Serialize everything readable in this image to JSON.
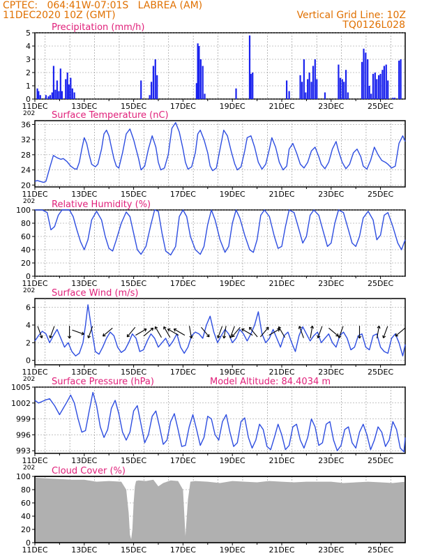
{
  "header": {
    "line1": "CPTEC:   064:41W-07:01S   LABREA (AM)",
    "line2": "11DEC2020 10Z (GMT)",
    "grid_line": "Vertical Grid Line: 10Z",
    "run_id": "TQ0126L028"
  },
  "colors": {
    "series": "#2d4de0",
    "bars": "#1a22ee",
    "cloud": "#b0b0b0",
    "title": "#e0207a",
    "header": "#e07000",
    "grid": "#888888"
  },
  "x_axis": {
    "start": "2020-12-11T00:00Z",
    "end": "2020-12-26T00:00Z",
    "tick_labels": [
      "11DEC",
      "13DEC",
      "15DEC",
      "17DEC",
      "19DEC",
      "21DEC",
      "23DEC",
      "25DEC"
    ],
    "tick_days": [
      0,
      2,
      4,
      6,
      8,
      10,
      12,
      14
    ],
    "partial_label": "202"
  },
  "chart_data": [
    {
      "type": "bar",
      "title": "Precipitation (mm/h)",
      "ylim": [
        0,
        5
      ],
      "yticks": [
        "0",
        "1",
        "2",
        "3",
        "4",
        "5"
      ],
      "x_unit": "days since 11DEC2020 00Z",
      "x": [
        0.1,
        0.15,
        0.22,
        0.45,
        0.55,
        0.62,
        0.7,
        0.76,
        0.83,
        0.9,
        0.97,
        1.04,
        1.1,
        1.25,
        1.32,
        1.38,
        1.45,
        1.52,
        1.6,
        4.3,
        4.65,
        4.72,
        4.8,
        4.88,
        4.95,
        6.55,
        6.6,
        6.65,
        6.72,
        6.8,
        6.88,
        8.15,
        8.7,
        8.75,
        8.82,
        10.2,
        10.3,
        10.75,
        10.82,
        10.9,
        10.97,
        11.05,
        11.12,
        11.2,
        11.27,
        11.35,
        11.42,
        11.75,
        12.3,
        12.37,
        12.45,
        12.52,
        12.6,
        12.68,
        13.25,
        13.32,
        13.4,
        13.48,
        13.55,
        13.62,
        13.7,
        13.78,
        13.85,
        13.93,
        14.0,
        14.08,
        14.15,
        14.23,
        14.3,
        14.5,
        14.58,
        14.75,
        14.82
      ],
      "values": [
        0.8,
        0.6,
        0.3,
        0.3,
        0.2,
        0.3,
        0.5,
        2.5,
        0.7,
        1.4,
        0.6,
        2.3,
        0.6,
        1.5,
        2.0,
        1.1,
        1.6,
        0.8,
        0.5,
        1.4,
        0.3,
        1.3,
        2.5,
        3.0,
        1.8,
        1.2,
        4.2,
        4.0,
        3.0,
        2.5,
        0.4,
        0.8,
        4.8,
        1.9,
        2.0,
        1.4,
        0.6,
        1.8,
        1.3,
        3.0,
        0.5,
        1.5,
        2.0,
        1.3,
        2.5,
        3.0,
        1.5,
        0.5,
        2.6,
        1.6,
        1.5,
        1.3,
        2.2,
        0.5,
        2.8,
        3.8,
        3.5,
        3.0,
        1.0,
        0.4,
        1.9,
        2.0,
        1.5,
        1.8,
        1.9,
        2.2,
        2.5,
        2.6,
        1.4,
        0.1,
        0.1,
        2.9,
        3.0
      ]
    },
    {
      "type": "line",
      "title": "Surface Temperature (nC)",
      "ylim": [
        19.5,
        37
      ],
      "yticks": [
        "20",
        "24",
        "28",
        "32",
        "36"
      ],
      "ytick_values": [
        20,
        24,
        28,
        32,
        36
      ],
      "x_unit": "days since 11DEC2020 00Z",
      "x": [
        0.0,
        0.1,
        0.2,
        0.3,
        0.35,
        0.45,
        0.6,
        0.75,
        0.9,
        1.05,
        1.15,
        1.3,
        1.45,
        1.6,
        1.7,
        1.8,
        1.9,
        2.0,
        2.1,
        2.2,
        2.3,
        2.45,
        2.55,
        2.7,
        2.8,
        2.9,
        3.0,
        3.1,
        3.2,
        3.3,
        3.4,
        3.55,
        3.7,
        3.85,
        4.0,
        4.1,
        4.2,
        4.3,
        4.45,
        4.6,
        4.75,
        4.9,
        5.0,
        5.1,
        5.25,
        5.4,
        5.55,
        5.7,
        5.85,
        6.0,
        6.1,
        6.2,
        6.35,
        6.5,
        6.6,
        6.7,
        6.85,
        7.0,
        7.1,
        7.2,
        7.35,
        7.5,
        7.65,
        7.8,
        7.95,
        8.1,
        8.2,
        8.35,
        8.5,
        8.6,
        8.75,
        8.9,
        9.05,
        9.2,
        9.35,
        9.5,
        9.6,
        9.75,
        9.9,
        10.05,
        10.2,
        10.3,
        10.45,
        10.6,
        10.75,
        10.9,
        11.05,
        11.2,
        11.35,
        11.5,
        11.6,
        11.75,
        11.9,
        12.05,
        12.2,
        12.3,
        12.45,
        12.6,
        12.75,
        12.9,
        13.05,
        13.2,
        13.3,
        13.45,
        13.6,
        13.75,
        13.9,
        14.05,
        14.2,
        14.3,
        14.45,
        14.6,
        14.75,
        14.9,
        15.0
      ],
      "values": [
        21.0,
        21.2,
        21.0,
        20.8,
        20.7,
        21.0,
        24.5,
        27.8,
        27.2,
        26.8,
        27.0,
        26.2,
        25.0,
        24.3,
        24.2,
        26.0,
        29.5,
        32.5,
        31.0,
        28.0,
        25.5,
        24.8,
        25.5,
        29.5,
        33.5,
        34.5,
        33.0,
        30.0,
        27.0,
        25.0,
        24.5,
        28.5,
        33.5,
        34.8,
        32.0,
        29.5,
        27.0,
        24.0,
        25.0,
        29.5,
        33.0,
        30.0,
        26.0,
        24.0,
        24.5,
        28.0,
        35.0,
        36.5,
        34.0,
        29.5,
        26.0,
        24.2,
        24.8,
        28.5,
        33.5,
        34.5,
        32.0,
        28.5,
        25.0,
        23.8,
        24.5,
        29.5,
        34.5,
        33.0,
        29.0,
        25.5,
        24.0,
        24.8,
        29.0,
        32.5,
        33.0,
        30.0,
        26.0,
        24.2,
        25.5,
        29.5,
        32.5,
        30.0,
        26.0,
        24.0,
        25.0,
        29.5,
        31.0,
        28.5,
        25.5,
        24.5,
        26.0,
        29.0,
        30.0,
        27.5,
        25.5,
        24.3,
        26.0,
        29.5,
        31.5,
        29.0,
        26.0,
        24.3,
        25.5,
        28.5,
        29.5,
        27.5,
        25.0,
        24.2,
        26.5,
        30.0,
        28.0,
        26.5,
        26.0,
        25.5,
        24.5,
        25.0,
        31.0,
        33.0,
        31.5
      ]
    },
    {
      "type": "line",
      "title": "Relative Humidity (%)",
      "ylim": [
        0,
        100
      ],
      "yticks": [
        "0",
        "20",
        "40",
        "60",
        "80",
        "100"
      ],
      "ytick_values": [
        0,
        20,
        40,
        60,
        80,
        100
      ],
      "x_unit": "days since 11DEC2020 00Z",
      "x": [
        0.0,
        0.15,
        0.3,
        0.5,
        0.65,
        0.8,
        0.95,
        1.1,
        1.25,
        1.4,
        1.55,
        1.7,
        1.85,
        2.0,
        2.15,
        2.3,
        2.5,
        2.7,
        2.85,
        3.0,
        3.15,
        3.3,
        3.5,
        3.7,
        3.85,
        4.0,
        4.15,
        4.3,
        4.5,
        4.7,
        4.85,
        5.0,
        5.15,
        5.3,
        5.5,
        5.7,
        5.85,
        6.0,
        6.15,
        6.3,
        6.5,
        6.7,
        6.85,
        7.0,
        7.15,
        7.3,
        7.5,
        7.7,
        7.85,
        8.0,
        8.15,
        8.3,
        8.5,
        8.7,
        8.85,
        9.0,
        9.15,
        9.3,
        9.5,
        9.7,
        9.85,
        10.0,
        10.15,
        10.3,
        10.5,
        10.7,
        10.85,
        11.0,
        11.15,
        11.3,
        11.5,
        11.7,
        11.85,
        12.0,
        12.15,
        12.3,
        12.5,
        12.7,
        12.85,
        13.0,
        13.15,
        13.3,
        13.5,
        13.7,
        13.85,
        14.0,
        14.15,
        14.3,
        14.5,
        14.7,
        14.85,
        15.0
      ],
      "values": [
        100,
        100,
        100,
        96,
        70,
        75,
        92,
        100,
        100,
        100,
        90,
        70,
        52,
        40,
        55,
        85,
        98,
        85,
        60,
        42,
        38,
        55,
        80,
        97,
        90,
        65,
        40,
        33,
        45,
        78,
        100,
        98,
        65,
        38,
        32,
        45,
        90,
        100,
        90,
        60,
        40,
        33,
        45,
        78,
        100,
        85,
        55,
        36,
        45,
        80,
        100,
        88,
        62,
        40,
        36,
        55,
        92,
        100,
        90,
        60,
        42,
        45,
        75,
        100,
        96,
        70,
        50,
        60,
        92,
        100,
        92,
        65,
        45,
        50,
        80,
        100,
        96,
        70,
        50,
        45,
        60,
        88,
        98,
        85,
        55,
        62,
        92,
        96,
        75,
        50,
        40,
        55
      ]
    },
    {
      "type": "line",
      "title": "Surface Wind (m/s)",
      "ylim": [
        -0.5,
        7
      ],
      "yticks": [
        "0",
        "2",
        "4",
        "6"
      ],
      "ytick_values": [
        0,
        2,
        4,
        6
      ],
      "x_unit": "days since 11DEC2020 00Z",
      "x": [
        0.0,
        0.15,
        0.3,
        0.45,
        0.6,
        0.75,
        0.9,
        1.05,
        1.2,
        1.35,
        1.5,
        1.65,
        1.8,
        1.95,
        2.05,
        2.15,
        2.3,
        2.45,
        2.6,
        2.75,
        2.9,
        3.05,
        3.2,
        3.35,
        3.5,
        3.65,
        3.8,
        3.95,
        4.1,
        4.25,
        4.4,
        4.55,
        4.7,
        4.85,
        5.0,
        5.15,
        5.3,
        5.45,
        5.6,
        5.75,
        5.9,
        6.05,
        6.2,
        6.35,
        6.5,
        6.65,
        6.8,
        6.95,
        7.1,
        7.25,
        7.4,
        7.55,
        7.7,
        7.85,
        8.0,
        8.15,
        8.3,
        8.45,
        8.6,
        8.75,
        8.9,
        9.05,
        9.2,
        9.35,
        9.5,
        9.65,
        9.8,
        9.95,
        10.1,
        10.25,
        10.4,
        10.55,
        10.7,
        10.85,
        11.0,
        11.15,
        11.3,
        11.45,
        11.6,
        11.75,
        11.9,
        12.05,
        12.2,
        12.35,
        12.5,
        12.65,
        12.8,
        12.95,
        13.1,
        13.25,
        13.4,
        13.55,
        13.7,
        13.85,
        14.0,
        14.15,
        14.3,
        14.45,
        14.6,
        14.75,
        14.9,
        15.0
      ],
      "values": [
        2.2,
        2.8,
        3.3,
        3.0,
        2.0,
        2.8,
        3.5,
        2.5,
        1.5,
        2.0,
        1.0,
        0.5,
        0.8,
        2.0,
        4.0,
        6.3,
        3.5,
        1.0,
        0.7,
        1.5,
        2.5,
        3.2,
        2.8,
        1.5,
        0.9,
        1.2,
        2.0,
        3.0,
        2.5,
        1.0,
        1.2,
        2.2,
        3.0,
        2.5,
        1.5,
        2.0,
        2.5,
        1.6,
        2.2,
        3.0,
        1.5,
        0.8,
        1.5,
        2.8,
        3.2,
        3.0,
        2.5,
        4.0,
        5.0,
        3.2,
        2.0,
        2.8,
        3.5,
        3.0,
        2.0,
        2.5,
        3.5,
        3.0,
        2.2,
        3.0,
        4.0,
        5.5,
        3.0,
        2.0,
        2.5,
        3.5,
        2.5,
        1.5,
        2.8,
        3.2,
        2.0,
        1.0,
        2.8,
        3.8,
        3.0,
        2.2,
        2.8,
        3.2,
        2.0,
        2.5,
        3.0,
        2.0,
        1.5,
        2.8,
        3.2,
        2.5,
        1.2,
        1.5,
        2.8,
        3.0,
        1.5,
        1.2,
        2.8,
        3.0,
        1.5,
        1.0,
        0.8,
        2.5,
        3.0,
        2.0,
        0.5,
        1.8
      ],
      "arrows": [
        {
          "day": 0.2,
          "dir_deg": 160
        },
        {
          "day": 0.7,
          "dir_deg": 200
        },
        {
          "day": 1.4,
          "dir_deg": 180
        },
        {
          "day": 1.75,
          "dir_deg": 110
        },
        {
          "day": 2.25,
          "dir_deg": 200
        },
        {
          "day": 2.95,
          "dir_deg": 230
        },
        {
          "day": 3.9,
          "dir_deg": 220
        },
        {
          "day": 4.3,
          "dir_deg": 60
        },
        {
          "day": 4.6,
          "dir_deg": 50
        },
        {
          "day": 5.0,
          "dir_deg": 330
        },
        {
          "day": 5.35,
          "dir_deg": 330
        },
        {
          "day": 5.6,
          "dir_deg": 300
        },
        {
          "day": 5.85,
          "dir_deg": 300
        },
        {
          "day": 6.3,
          "dir_deg": 170
        },
        {
          "day": 6.9,
          "dir_deg": 140
        },
        {
          "day": 7.5,
          "dir_deg": 200
        },
        {
          "day": 7.7,
          "dir_deg": 190
        },
        {
          "day": 8.0,
          "dir_deg": 200
        },
        {
          "day": 8.15,
          "dir_deg": 220
        },
        {
          "day": 8.6,
          "dir_deg": 300
        },
        {
          "day": 8.85,
          "dir_deg": 320
        },
        {
          "day": 9.3,
          "dir_deg": 40
        },
        {
          "day": 9.7,
          "dir_deg": 60
        },
        {
          "day": 10.0,
          "dir_deg": 330
        },
        {
          "day": 10.8,
          "dir_deg": 340
        },
        {
          "day": 11.2,
          "dir_deg": 10
        },
        {
          "day": 11.55,
          "dir_deg": 200
        },
        {
          "day": 12.1,
          "dir_deg": 130
        },
        {
          "day": 12.4,
          "dir_deg": 200
        },
        {
          "day": 13.15,
          "dir_deg": 180
        },
        {
          "day": 13.9,
          "dir_deg": 10
        },
        {
          "day": 14.2,
          "dir_deg": 200
        },
        {
          "day": 14.8,
          "dir_deg": 230
        }
      ]
    },
    {
      "type": "line",
      "title": "Surface Pressure (hPa)",
      "annotation": "Model Altitude: 84.4034 m",
      "ylim": [
        992.5,
        1005
      ],
      "yticks": [
        "993",
        "996",
        "999",
        "1002",
        "1005"
      ],
      "ytick_values": [
        993,
        996,
        999,
        1002,
        1005
      ],
      "x_unit": "days since 11DEC2020 00Z",
      "x": [
        0.0,
        0.15,
        0.3,
        0.45,
        0.6,
        0.8,
        1.0,
        1.15,
        1.3,
        1.45,
        1.6,
        1.75,
        1.9,
        2.05,
        2.2,
        2.35,
        2.5,
        2.65,
        2.8,
        2.95,
        3.1,
        3.25,
        3.4,
        3.55,
        3.7,
        3.85,
        4.0,
        4.15,
        4.3,
        4.45,
        4.6,
        4.75,
        4.9,
        5.05,
        5.2,
        5.35,
        5.5,
        5.65,
        5.8,
        5.95,
        6.1,
        6.25,
        6.4,
        6.55,
        6.7,
        6.85,
        7.0,
        7.15,
        7.3,
        7.45,
        7.6,
        7.75,
        7.9,
        8.05,
        8.2,
        8.35,
        8.5,
        8.65,
        8.8,
        8.95,
        9.1,
        9.25,
        9.4,
        9.55,
        9.7,
        9.85,
        10.0,
        10.15,
        10.3,
        10.45,
        10.6,
        10.75,
        10.9,
        11.05,
        11.2,
        11.35,
        11.5,
        11.65,
        11.8,
        11.95,
        12.1,
        12.25,
        12.4,
        12.55,
        12.7,
        12.85,
        13.0,
        13.15,
        13.3,
        13.45,
        13.6,
        13.75,
        13.9,
        14.05,
        14.2,
        14.35,
        14.5,
        14.65,
        14.8,
        14.95,
        15.0
      ],
      "values": [
        1002.5,
        1002.0,
        1002.3,
        1002.6,
        1002.8,
        1001.5,
        999.8,
        1001.0,
        1002.2,
        1003.5,
        1002.0,
        999.0,
        996.5,
        996.8,
        1000.5,
        1004.0,
        1001.5,
        997.5,
        995.5,
        997.0,
        1001.0,
        1002.5,
        1000.0,
        996.5,
        995.0,
        996.5,
        1000.5,
        1001.5,
        998.0,
        994.5,
        996.0,
        999.5,
        1000.5,
        997.5,
        994.2,
        995.0,
        998.5,
        1000.0,
        997.0,
        993.8,
        994.0,
        997.5,
        999.8,
        997.0,
        994.0,
        995.5,
        999.5,
        999.0,
        996.0,
        995.0,
        998.5,
        999.8,
        996.5,
        993.8,
        994.5,
        998.5,
        999.2,
        995.5,
        993.5,
        995.0,
        998.0,
        997.0,
        993.8,
        993.2,
        995.5,
        998.0,
        996.0,
        993.2,
        994.0,
        997.5,
        998.0,
        995.0,
        993.5,
        995.5,
        999.0,
        997.5,
        994.0,
        994.5,
        998.0,
        998.5,
        995.0,
        993.0,
        994.0,
        997.0,
        997.5,
        994.5,
        993.5,
        996.5,
        998.0,
        996.0,
        993.2,
        995.0,
        997.5,
        996.5,
        993.8,
        995.0,
        998.5,
        997.0,
        993.5,
        992.8,
        995.5
      ]
    },
    {
      "type": "area",
      "title": "Cloud Cover (%)",
      "ylim": [
        0,
        100
      ],
      "yticks": [
        "0",
        "20",
        "40",
        "60",
        "80",
        "100"
      ],
      "ytick_values": [
        0,
        20,
        40,
        60,
        80,
        100
      ],
      "x_unit": "days since 11DEC2020 00Z",
      "x": [
        0.0,
        0.5,
        1.0,
        1.5,
        2.0,
        2.5,
        3.0,
        3.5,
        3.7,
        3.8,
        3.85,
        3.9,
        3.95,
        4.0,
        4.05,
        4.1,
        4.2,
        4.5,
        4.8,
        5.0,
        5.2,
        5.5,
        5.8,
        6.0,
        6.1,
        6.2,
        6.3,
        6.5,
        7.0,
        7.5,
        8.0,
        8.5,
        9.0,
        9.5,
        10.0,
        10.5,
        11.0,
        11.5,
        12.0,
        12.5,
        13.0,
        13.5,
        14.0,
        14.5,
        15.0
      ],
      "values": [
        98,
        97,
        96,
        95,
        95,
        92,
        93,
        92,
        80,
        45,
        12,
        5,
        20,
        60,
        85,
        93,
        94,
        93,
        95,
        85,
        90,
        94,
        93,
        80,
        10,
        65,
        92,
        93,
        92,
        90,
        93,
        92,
        91,
        93,
        92,
        91,
        92,
        92,
        92,
        90,
        91,
        92,
        91,
        90,
        92
      ]
    }
  ]
}
